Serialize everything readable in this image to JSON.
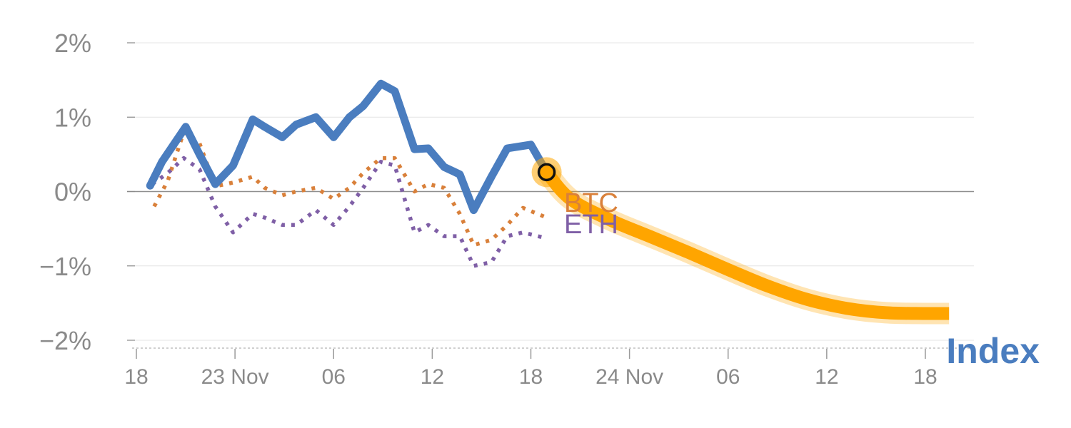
{
  "chart_data": {
    "type": "line",
    "title": "",
    "xlabel": "",
    "ylabel": "",
    "ylim": [
      -2,
      2
    ],
    "xlim": [
      0,
      40
    ],
    "y_ticks": [
      {
        "value": 2,
        "label": "2%"
      },
      {
        "value": 1,
        "label": "1%"
      },
      {
        "value": 0,
        "label": "0%"
      },
      {
        "value": -1,
        "label": "−1%"
      },
      {
        "value": -2,
        "label": "−2%"
      }
    ],
    "x_ticks": [
      {
        "value": 0,
        "label": "18"
      },
      {
        "value": 5,
        "label": "23 Nov"
      },
      {
        "value": 10,
        "label": "06"
      },
      {
        "value": 15,
        "label": "12"
      },
      {
        "value": 20,
        "label": "18"
      },
      {
        "value": 25,
        "label": "24 Nov"
      },
      {
        "value": 30,
        "label": "06"
      },
      {
        "value": 35,
        "label": "12"
      },
      {
        "value": 40,
        "label": "18"
      }
    ],
    "series": [
      {
        "name": "Index",
        "color": "#4a7dbf",
        "style": "solid",
        "x": [
          0.7,
          1.3,
          2.5,
          3.2,
          4.0,
          4.9,
          5.9,
          6.5,
          7.4,
          8.1,
          9.1,
          10.0,
          10.8,
          11.5,
          12.4,
          13.1,
          14.1,
          14.8,
          15.6,
          16.4,
          17.1,
          18.0,
          18.8,
          20.0,
          20.8
        ],
        "y": [
          0.08,
          0.4,
          0.87,
          0.5,
          0.1,
          0.35,
          0.97,
          0.87,
          0.73,
          0.9,
          1.0,
          0.73,
          1.0,
          1.15,
          1.45,
          1.35,
          0.57,
          0.58,
          0.33,
          0.23,
          -0.25,
          0.2,
          0.58,
          0.63,
          0.26
        ]
      },
      {
        "name": "BTC",
        "color": "#d9803a",
        "style": "dotted",
        "x": [
          0.9,
          1.6,
          2.4,
          3.2,
          4.0,
          4.9,
          5.9,
          6.5,
          7.4,
          8.1,
          9.1,
          10.0,
          10.8,
          11.5,
          12.4,
          13.1,
          14.1,
          14.8,
          15.6,
          16.4,
          17.1,
          18.0,
          18.8,
          19.6,
          20.8
        ],
        "y": [
          -0.2,
          0.15,
          0.8,
          0.65,
          0.07,
          0.12,
          0.2,
          0.05,
          -0.05,
          0.0,
          0.05,
          -0.1,
          0.05,
          0.25,
          0.45,
          0.45,
          0.0,
          0.1,
          0.05,
          -0.3,
          -0.72,
          -0.65,
          -0.45,
          -0.22,
          -0.35
        ]
      },
      {
        "name": "ETH",
        "color": "#7f5fa6",
        "style": "dotted",
        "x": [
          0.8,
          1.6,
          2.4,
          3.2,
          4.0,
          4.9,
          5.9,
          6.5,
          7.4,
          8.1,
          9.1,
          10.0,
          10.8,
          11.5,
          12.4,
          13.1,
          14.1,
          14.8,
          15.6,
          16.4,
          17.1,
          18.0,
          18.8,
          19.6,
          20.8
        ],
        "y": [
          0.1,
          0.25,
          0.45,
          0.3,
          -0.2,
          -0.55,
          -0.3,
          -0.35,
          -0.45,
          -0.45,
          -0.25,
          -0.45,
          -0.2,
          0.05,
          0.4,
          0.35,
          -0.55,
          -0.45,
          -0.6,
          -0.6,
          -1.0,
          -0.95,
          -0.6,
          -0.55,
          -0.63
        ]
      }
    ],
    "projection": {
      "name": "Index projection",
      "color": "#ffa500",
      "style": "thick",
      "x": [
        20.8,
        22,
        24,
        26,
        28,
        30,
        32,
        34,
        36,
        38,
        40,
        41.2
      ],
      "y": [
        0.26,
        -0.1,
        -0.38,
        -0.6,
        -0.82,
        -1.05,
        -1.27,
        -1.45,
        -1.57,
        -1.63,
        -1.64,
        -1.64
      ]
    },
    "marker": {
      "x": 20.8,
      "y": 0.26,
      "color": "#ffa500"
    },
    "series_labels": [
      {
        "text": "BTC",
        "color": "#d9803a"
      },
      {
        "text": "ETH",
        "color": "#7f5fa6"
      },
      {
        "text": "Index",
        "color": "#4a7dbf"
      }
    ],
    "grid": true,
    "legend": "inline-right"
  }
}
